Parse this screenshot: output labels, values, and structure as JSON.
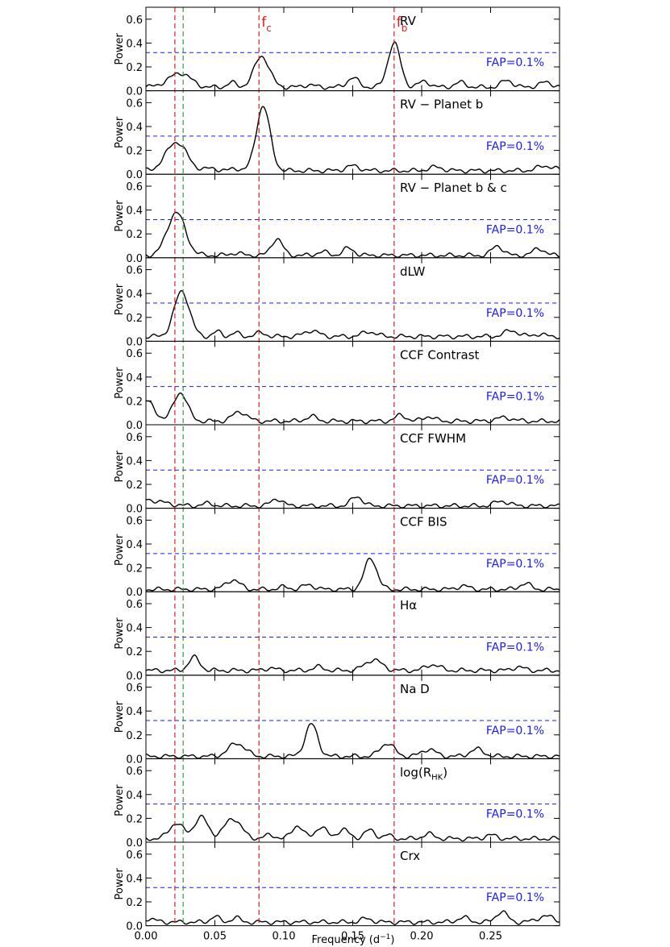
{
  "chart_data": {
    "type": "line",
    "xlabel": "Frequency (d",
    "xlabel_sup": "−1",
    "xlabel_tail": ")",
    "ylabel": "Power",
    "xlim": [
      0,
      0.3
    ],
    "ylim": [
      0,
      0.7
    ],
    "xticks": [
      0.0,
      0.05,
      0.1,
      0.15,
      0.2,
      0.25
    ],
    "xtick_labels": [
      "0.00",
      "0.05",
      "0.10",
      "0.15",
      "0.20",
      "0.25"
    ],
    "yticks": [
      0.0,
      0.2,
      0.4,
      0.6
    ],
    "ytick_labels": [
      "0.0",
      "0.2",
      "0.4",
      "0.6"
    ],
    "fap_level": 0.32,
    "fap_label": "FAP=0.1%",
    "vertical_lines": [
      {
        "x": 0.021,
        "color": "#e41a1c",
        "label": ""
      },
      {
        "x": 0.027,
        "color": "#2ca02c",
        "label": ""
      },
      {
        "x": 0.082,
        "color": "#e41a1c",
        "label": "f",
        "sub": "c"
      },
      {
        "x": 0.18,
        "color": "#e41a1c",
        "label": "f",
        "sub": "b"
      }
    ],
    "colors": {
      "curve": "#000000",
      "fap": "#1a1aff",
      "red_line": "#e41a1c",
      "green_line": "#2ca02c"
    },
    "panels": [
      {
        "label": "RV",
        "baseline": 0.03,
        "peaks": [
          [
            0.022,
            0.08,
            0.008
          ],
          [
            0.028,
            0.05,
            0.006
          ],
          [
            0.062,
            0.04,
            0.003
          ],
          [
            0.084,
            0.26,
            0.0055
          ],
          [
            0.118,
            0.02,
            0.004
          ],
          [
            0.15,
            0.08,
            0.004
          ],
          [
            0.18,
            0.37,
            0.0045
          ],
          [
            0.202,
            0.05,
            0.004
          ],
          [
            0.228,
            0.04,
            0.004
          ],
          [
            0.262,
            0.06,
            0.004
          ],
          [
            0.29,
            0.04,
            0.005
          ]
        ]
      },
      {
        "label": "RV − Planet b",
        "baseline": 0.03,
        "peaks": [
          [
            0.022,
            0.24,
            0.0075
          ],
          [
            0.048,
            0.02,
            0.004
          ],
          [
            0.065,
            0.02,
            0.003
          ],
          [
            0.085,
            0.54,
            0.005
          ],
          [
            0.15,
            0.04,
            0.005
          ],
          [
            0.21,
            0.03,
            0.005
          ],
          [
            0.29,
            0.04,
            0.006
          ]
        ]
      },
      {
        "label": "RV − Planet b & c",
        "baseline": 0.02,
        "peaks": [
          [
            0.022,
            0.36,
            0.0065
          ],
          [
            0.065,
            0.02,
            0.004
          ],
          [
            0.095,
            0.14,
            0.004
          ],
          [
            0.128,
            0.03,
            0.004
          ],
          [
            0.147,
            0.06,
            0.004
          ],
          [
            0.255,
            0.08,
            0.004
          ],
          [
            0.285,
            0.06,
            0.004
          ]
        ]
      },
      {
        "label": "dLW",
        "baseline": 0.04,
        "peaks": [
          [
            0.026,
            0.38,
            0.0055
          ],
          [
            0.052,
            0.04,
            0.003
          ],
          [
            0.065,
            0.03,
            0.003
          ],
          [
            0.083,
            0.03,
            0.004
          ],
          [
            0.12,
            0.05,
            0.005
          ],
          [
            0.162,
            0.04,
            0.005
          ],
          [
            0.265,
            0.05,
            0.005
          ],
          [
            0.285,
            0.02,
            0.004
          ]
        ]
      },
      {
        "label": "CCF Contrast",
        "baseline": 0.03,
        "peaks": [
          [
            0.0,
            0.17,
            0.006
          ],
          [
            0.025,
            0.24,
            0.005
          ],
          [
            0.068,
            0.08,
            0.005
          ],
          [
            0.12,
            0.04,
            0.004
          ],
          [
            0.185,
            0.05,
            0.004
          ],
          [
            0.205,
            0.04,
            0.004
          ],
          [
            0.26,
            0.03,
            0.006
          ]
        ]
      },
      {
        "label": "CCF FWHM",
        "baseline": 0.02,
        "peaks": [
          [
            0.0,
            0.05,
            0.012
          ],
          [
            0.045,
            0.02,
            0.004
          ],
          [
            0.095,
            0.06,
            0.004
          ],
          [
            0.153,
            0.08,
            0.004
          ],
          [
            0.258,
            0.04,
            0.005
          ]
        ]
      },
      {
        "label": "CCF BIS",
        "baseline": 0.02,
        "peaks": [
          [
            0.063,
            0.08,
            0.005
          ],
          [
            0.1,
            0.02,
            0.004
          ],
          [
            0.118,
            0.04,
            0.004
          ],
          [
            0.163,
            0.26,
            0.0045
          ],
          [
            0.23,
            0.03,
            0.004
          ],
          [
            0.275,
            0.05,
            0.004
          ]
        ]
      },
      {
        "label": "Hα",
        "baseline": 0.04,
        "peaks": [
          [
            0.035,
            0.11,
            0.004
          ],
          [
            0.09,
            0.02,
            0.004
          ],
          [
            0.125,
            0.03,
            0.004
          ],
          [
            0.165,
            0.09,
            0.006
          ],
          [
            0.208,
            0.05,
            0.005
          ],
          [
            0.27,
            0.03,
            0.004
          ]
        ]
      },
      {
        "label": "Na D",
        "baseline": 0.02,
        "peaks": [
          [
            0.066,
            0.11,
            0.006
          ],
          [
            0.12,
            0.27,
            0.0045
          ],
          [
            0.175,
            0.11,
            0.005
          ],
          [
            0.205,
            0.06,
            0.005
          ],
          [
            0.24,
            0.06,
            0.005
          ]
        ]
      },
      {
        "label": "log(R",
        "label_sub": "HK",
        "label_tail": ")",
        "baseline": 0.03,
        "peaks": [
          [
            0.022,
            0.13,
            0.005
          ],
          [
            0.04,
            0.18,
            0.005
          ],
          [
            0.063,
            0.17,
            0.006
          ],
          [
            0.09,
            0.03,
            0.004
          ],
          [
            0.11,
            0.11,
            0.004
          ],
          [
            0.127,
            0.1,
            0.004
          ],
          [
            0.143,
            0.08,
            0.004
          ],
          [
            0.162,
            0.07,
            0.004
          ],
          [
            0.175,
            0.03,
            0.003
          ],
          [
            0.205,
            0.04,
            0.004
          ],
          [
            0.25,
            0.03,
            0.004
          ]
        ]
      },
      {
        "label": "Crx",
        "baseline": 0.03,
        "peaks": [
          [
            0.0,
            0.03,
            0.006
          ],
          [
            0.05,
            0.05,
            0.003
          ],
          [
            0.065,
            0.04,
            0.003
          ],
          [
            0.16,
            0.03,
            0.004
          ],
          [
            0.23,
            0.04,
            0.004
          ],
          [
            0.258,
            0.09,
            0.004
          ],
          [
            0.29,
            0.05,
            0.006
          ]
        ]
      }
    ]
  }
}
